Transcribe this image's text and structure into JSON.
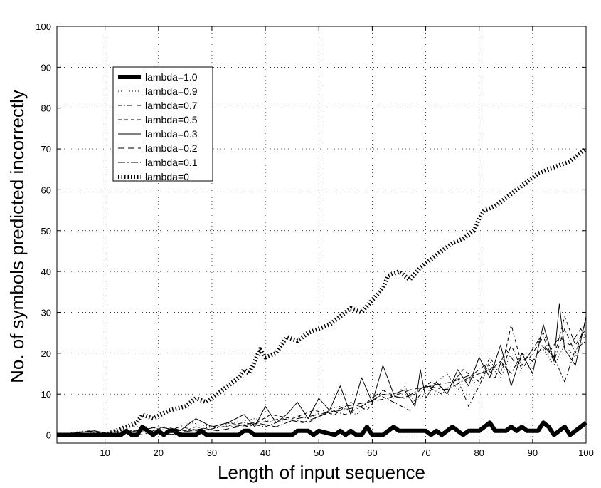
{
  "chart_data": {
    "type": "line",
    "title": "",
    "xlabel": "Length of input sequence",
    "ylabel": "No. of symbols predicted incorrectly",
    "xlim": [
      1,
      100
    ],
    "ylim": [
      -2,
      100
    ],
    "xticks": [
      10,
      20,
      30,
      40,
      50,
      60,
      70,
      80,
      90,
      100
    ],
    "yticks": [
      0,
      10,
      20,
      30,
      40,
      50,
      60,
      70,
      80,
      90,
      100
    ],
    "grid": true,
    "legend_position": "top-left",
    "series": [
      {
        "name": "lambda=1.0",
        "style": "thick-solid",
        "color": "#000000",
        "x": [
          1,
          13,
          14,
          15,
          16,
          17,
          18,
          19,
          20,
          21,
          22,
          23,
          24,
          27,
          28,
          29,
          30,
          35,
          36,
          37,
          38,
          39,
          40,
          45,
          46,
          47,
          48,
          49,
          50,
          53,
          54,
          55,
          56,
          57,
          58,
          59,
          60,
          62,
          63,
          64,
          65,
          66,
          67,
          68,
          69,
          70,
          71,
          72,
          73,
          74,
          75,
          76,
          77,
          78,
          80,
          81,
          82,
          83,
          84,
          85,
          86,
          87,
          88,
          89,
          90,
          91,
          92,
          93,
          94,
          95,
          96,
          97,
          98,
          99,
          100
        ],
        "values": [
          0,
          0,
          1,
          0,
          0,
          2,
          1,
          0,
          1,
          0,
          1,
          1,
          0,
          0,
          1,
          0,
          0,
          0,
          1,
          1,
          0,
          0,
          0,
          0,
          1,
          1,
          1,
          0,
          1,
          0,
          1,
          0,
          1,
          0,
          0,
          2,
          0,
          0,
          1,
          2,
          1,
          1,
          1,
          1,
          1,
          1,
          0,
          1,
          0,
          1,
          2,
          1,
          0,
          1,
          1,
          2,
          3,
          1,
          1,
          1,
          2,
          1,
          2,
          1,
          1,
          1,
          3,
          2,
          0,
          1,
          2,
          0,
          1,
          2,
          3
        ]
      },
      {
        "name": "lambda=0.9",
        "style": "dotted",
        "color": "#000000",
        "x": [
          1,
          6,
          10,
          14,
          18,
          22,
          26,
          30,
          34,
          38,
          42,
          45,
          48,
          51,
          54,
          57,
          60,
          62,
          64,
          66,
          68,
          70,
          72,
          74,
          76,
          78,
          80,
          82,
          84,
          86,
          88,
          90,
          92,
          94,
          96,
          98,
          100
        ],
        "values": [
          0,
          1,
          0,
          2,
          2,
          1,
          3,
          2,
          3,
          4,
          3,
          5,
          4,
          6,
          7,
          5,
          8,
          11,
          9,
          12,
          8,
          10,
          13,
          15,
          11,
          14,
          12,
          17,
          14,
          20,
          15,
          18,
          21,
          17,
          22,
          19,
          25
        ]
      },
      {
        "name": "lambda=0.7",
        "style": "dash-dot",
        "color": "#000000",
        "x": [
          1,
          8,
          12,
          16,
          20,
          24,
          28,
          32,
          36,
          40,
          44,
          48,
          52,
          55,
          58,
          61,
          64,
          67,
          70,
          73,
          76,
          78,
          80,
          82,
          84,
          86,
          88,
          90,
          92,
          94,
          96,
          98,
          100
        ],
        "values": [
          0,
          1,
          0,
          1,
          0,
          2,
          1,
          2,
          3,
          2,
          4,
          3,
          6,
          5,
          7,
          10,
          8,
          6,
          12,
          10,
          14,
          7,
          12,
          18,
          15,
          22,
          16,
          20,
          24,
          18,
          26,
          20,
          28
        ]
      },
      {
        "name": "lambda=0.5",
        "style": "dashed",
        "color": "#000000",
        "x": [
          1,
          9,
          13,
          17,
          21,
          25,
          29,
          33,
          37,
          41,
          45,
          49,
          53,
          56,
          59,
          62,
          65,
          68,
          71,
          74,
          77,
          80,
          82,
          84,
          86,
          88,
          90,
          92,
          94,
          96,
          98,
          100
        ],
        "values": [
          0,
          0,
          1,
          0,
          2,
          1,
          1,
          3,
          2,
          5,
          4,
          6,
          5,
          8,
          6,
          11,
          9,
          10,
          13,
          11,
          16,
          13,
          19,
          15,
          27,
          17,
          21,
          25,
          19,
          29,
          22,
          26
        ]
      },
      {
        "name": "lambda=0.3",
        "style": "solid",
        "color": "#000000",
        "x": [
          1,
          8,
          12,
          16,
          20,
          24,
          27,
          30,
          33,
          36,
          38,
          40,
          42,
          44,
          46,
          48,
          50,
          52,
          54,
          56,
          58,
          60,
          62,
          64,
          66,
          68,
          69,
          70,
          72,
          74,
          76,
          78,
          80,
          82,
          84,
          86,
          88,
          90,
          92,
          94,
          95,
          96,
          98,
          100
        ],
        "values": [
          0,
          1,
          0,
          1,
          2,
          1,
          4,
          2,
          3,
          5,
          2,
          7,
          3,
          5,
          8,
          4,
          9,
          6,
          12,
          5,
          14,
          8,
          17,
          10,
          11,
          7,
          16,
          9,
          13,
          10,
          16,
          12,
          19,
          14,
          22,
          12,
          20,
          15,
          27,
          18,
          32,
          21,
          17,
          29
        ]
      },
      {
        "name": "lambda=0.2",
        "style": "long-dash",
        "color": "#000000",
        "x": [
          1,
          7,
          11,
          15,
          19,
          23,
          27,
          31,
          35,
          39,
          43,
          47,
          51,
          55,
          59,
          63,
          67,
          71,
          75,
          79,
          81,
          83,
          85,
          87,
          89,
          91,
          93,
          95,
          97,
          99,
          100
        ],
        "values": [
          0,
          1,
          0,
          1,
          1,
          0,
          2,
          1,
          2,
          3,
          4,
          3,
          5,
          7,
          8,
          9,
          11,
          12,
          13,
          15,
          17,
          14,
          21,
          17,
          19,
          23,
          20,
          24,
          22,
          26,
          24
        ]
      },
      {
        "name": "lambda=0.1",
        "style": "dash-dot-long",
        "color": "#000000",
        "x": [
          1,
          10,
          14,
          18,
          22,
          26,
          30,
          34,
          38,
          42,
          46,
          50,
          54,
          58,
          62,
          66,
          70,
          74,
          78,
          82,
          84,
          86,
          88,
          90,
          92,
          94,
          96,
          98,
          100
        ],
        "values": [
          0,
          0,
          1,
          1,
          0,
          1,
          2,
          2,
          3,
          2,
          4,
          5,
          6,
          7,
          10,
          9,
          12,
          11,
          14,
          16,
          18,
          15,
          20,
          18,
          22,
          19,
          13,
          21,
          23
        ]
      },
      {
        "name": "lambda=0",
        "style": "vertical-hatch",
        "color": "#000000",
        "x": [
          1,
          10,
          14,
          16,
          17,
          19,
          22,
          25,
          27,
          29,
          31,
          33,
          35,
          36,
          37,
          38,
          39,
          40,
          42,
          44,
          46,
          48,
          50,
          52,
          54,
          56,
          58,
          60,
          62,
          63,
          65,
          67,
          69,
          71,
          73,
          75,
          77,
          79,
          80,
          81,
          83,
          85,
          87,
          89,
          91,
          93,
          95,
          97,
          99,
          100
        ],
        "values": [
          0,
          0,
          2,
          3,
          5,
          4,
          6,
          7,
          9,
          8,
          10,
          12,
          14,
          16,
          15,
          18,
          21,
          19,
          20,
          24,
          23,
          25,
          26,
          27,
          29,
          31,
          30,
          33,
          36,
          39,
          40,
          38,
          41,
          43,
          45,
          47,
          48,
          50,
          53,
          55,
          56,
          58,
          60,
          62,
          64,
          65,
          66,
          67,
          69,
          70
        ]
      }
    ]
  }
}
